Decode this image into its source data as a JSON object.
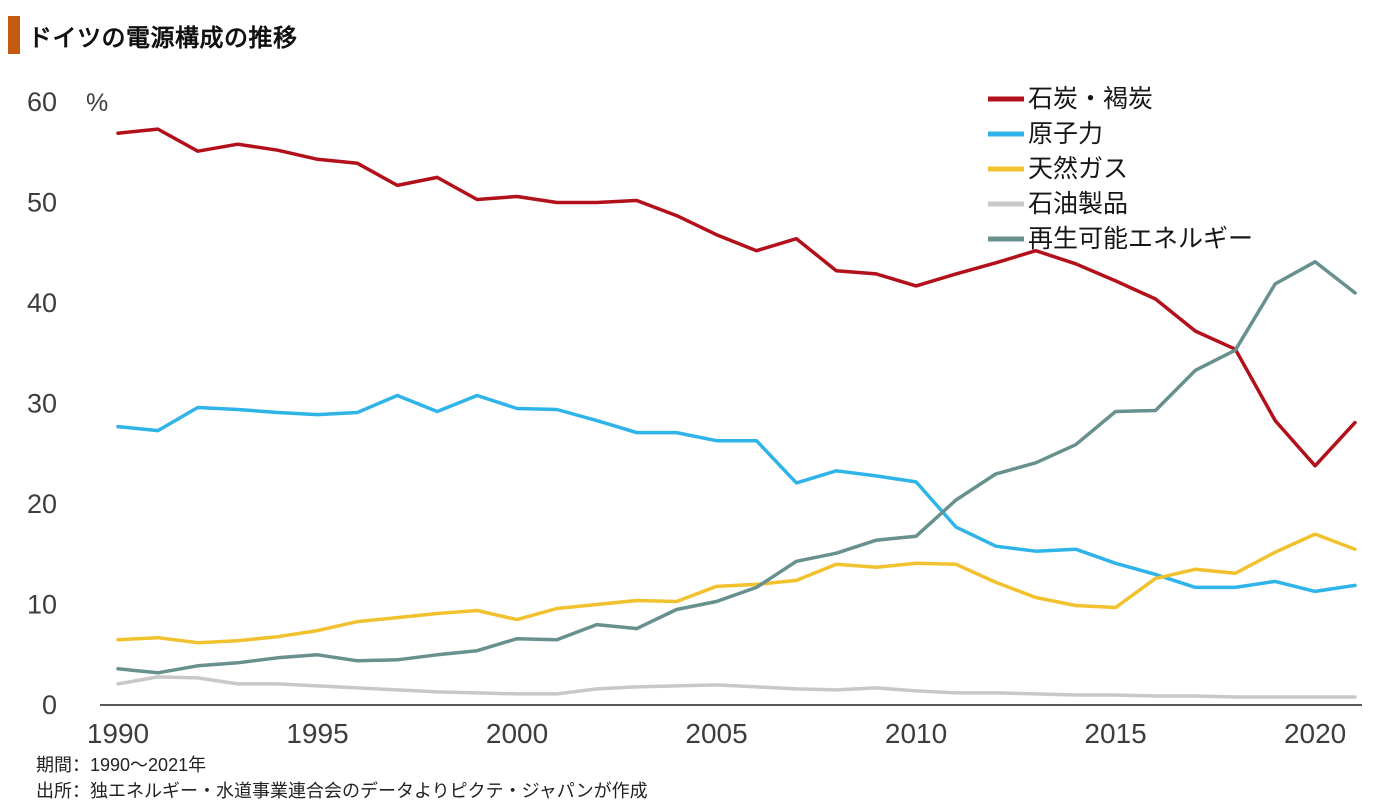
{
  "title": "ドイツの電源構成の推移",
  "accent_color": "#C55A11",
  "footer": {
    "period": "期間：1990～2021年",
    "source": "出所：独エネルギー・水道事業連合会のデータよりピクテ・ジャパンが作成"
  },
  "chart_data": {
    "type": "line",
    "title": "ドイツの電源構成の推移",
    "ylabel": "%",
    "ylim": [
      0,
      60
    ],
    "grid": false,
    "legend_position": "top-right",
    "x": [
      1990,
      1991,
      1992,
      1993,
      1994,
      1995,
      1996,
      1997,
      1998,
      1999,
      2000,
      2001,
      2002,
      2003,
      2004,
      2005,
      2006,
      2007,
      2008,
      2009,
      2010,
      2011,
      2012,
      2013,
      2014,
      2015,
      2016,
      2017,
      2018,
      2019,
      2020,
      2021
    ],
    "x_ticks": [
      1990,
      1995,
      2000,
      2005,
      2010,
      2015,
      2020
    ],
    "y_ticks": [
      0,
      10,
      20,
      30,
      40,
      50,
      60
    ],
    "series": [
      {
        "name": "石炭・褐炭",
        "slug": "coal-lignite",
        "color": "#B2101A",
        "values": [
          56.9,
          57.3,
          55.1,
          55.8,
          55.2,
          54.3,
          53.9,
          51.7,
          52.5,
          50.3,
          50.6,
          50.0,
          50.0,
          50.2,
          48.7,
          46.8,
          45.2,
          46.4,
          43.2,
          42.9,
          41.7,
          42.9,
          44.0,
          45.2,
          43.9,
          42.2,
          40.4,
          37.2,
          35.4,
          28.3,
          23.8,
          28.1
        ]
      },
      {
        "name": "原子力",
        "slug": "nuclear",
        "color": "#2FB4E9",
        "values": [
          27.7,
          27.3,
          29.6,
          29.4,
          29.1,
          28.9,
          29.1,
          30.8,
          29.2,
          30.8,
          29.5,
          29.4,
          28.3,
          27.1,
          27.1,
          26.3,
          26.3,
          22.1,
          23.3,
          22.8,
          22.2,
          17.7,
          15.8,
          15.3,
          15.5,
          14.1,
          13.0,
          11.7,
          11.7,
          12.3,
          11.3,
          11.9
        ]
      },
      {
        "name": "天然ガス",
        "slug": "natural-gas",
        "color": "#F2C12E",
        "values": [
          6.5,
          6.7,
          6.2,
          6.4,
          6.8,
          7.4,
          8.3,
          8.7,
          9.1,
          9.4,
          8.5,
          9.6,
          10.0,
          10.4,
          10.3,
          11.8,
          12.0,
          12.4,
          14.0,
          13.7,
          14.1,
          14.0,
          12.2,
          10.7,
          9.9,
          9.7,
          12.6,
          13.5,
          13.1,
          15.2,
          17.0,
          15.5
        ]
      },
      {
        "name": "石油製品",
        "slug": "petroleum",
        "color": "#C8C8C8",
        "values": [
          2.1,
          2.8,
          2.7,
          2.1,
          2.1,
          1.9,
          1.7,
          1.5,
          1.3,
          1.2,
          1.1,
          1.1,
          1.6,
          1.8,
          1.9,
          2.0,
          1.8,
          1.6,
          1.5,
          1.7,
          1.4,
          1.2,
          1.2,
          1.1,
          1.0,
          1.0,
          0.9,
          0.9,
          0.8,
          0.8,
          0.8,
          0.8
        ]
      },
      {
        "name": "再生可能エネルギー",
        "slug": "renewables",
        "color": "#67908F",
        "values": [
          3.6,
          3.2,
          3.9,
          4.2,
          4.7,
          5.0,
          4.4,
          4.5,
          5.0,
          5.4,
          6.6,
          6.5,
          8.0,
          7.6,
          9.5,
          10.3,
          11.7,
          14.3,
          15.1,
          16.4,
          16.8,
          20.4,
          23.0,
          24.1,
          25.9,
          29.2,
          29.3,
          33.3,
          35.3,
          41.9,
          44.1,
          41.0
        ]
      }
    ]
  }
}
